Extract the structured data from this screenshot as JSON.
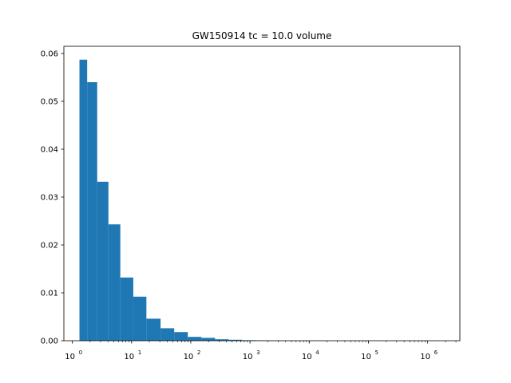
{
  "chart_data": {
    "type": "bar",
    "title": "GW150914 tc = 10.0 volume",
    "xlabel": "",
    "ylabel": "",
    "xscale": "log",
    "xlim": [
      0.72,
      3500000
    ],
    "ylim": [
      0,
      0.0615
    ],
    "grid": false,
    "bar_color": "#1f77b4",
    "bins": [
      {
        "x0": 1.32,
        "x1": 1.78,
        "value": 0.0587
      },
      {
        "x0": 1.78,
        "x1": 2.63,
        "value": 0.054
      },
      {
        "x0": 2.63,
        "x1": 4.07,
        "value": 0.0332
      },
      {
        "x0": 4.07,
        "x1": 6.46,
        "value": 0.0243
      },
      {
        "x0": 6.46,
        "x1": 10.7,
        "value": 0.0132
      },
      {
        "x0": 10.7,
        "x1": 17.8,
        "value": 0.0092
      },
      {
        "x0": 17.8,
        "x1": 30.9,
        "value": 0.0046
      },
      {
        "x0": 30.9,
        "x1": 52.5,
        "value": 0.0026
      },
      {
        "x0": 52.5,
        "x1": 89.1,
        "value": 0.0018
      },
      {
        "x0": 89.1,
        "x1": 151,
        "value": 0.0008
      },
      {
        "x0": 151,
        "x1": 257,
        "value": 0.0006
      },
      {
        "x0": 257,
        "x1": 437,
        "value": 0.0003
      },
      {
        "x0": 437,
        "x1": 741,
        "value": 0.0002
      },
      {
        "x0": 741,
        "x1": 1259,
        "value": 0.0001
      },
      {
        "x0": 1259,
        "x1": 2138,
        "value": 6e-05
      },
      {
        "x0": 2138,
        "x1": 3631,
        "value": 4e-05
      },
      {
        "x0": 3631,
        "x1": 6166,
        "value": 3e-05
      },
      {
        "x0": 6166,
        "x1": 10471,
        "value": 2e-05
      },
      {
        "x0": 10471,
        "x1": 17783,
        "value": 1.5e-05
      },
      {
        "x0": 17783,
        "x1": 30200,
        "value": 1e-05
      },
      {
        "x0": 30200,
        "x1": 51286,
        "value": 8e-06
      },
      {
        "x0": 51286,
        "x1": 87096,
        "value": 6e-06
      },
      {
        "x0": 87096,
        "x1": 147911,
        "value": 5e-06
      },
      {
        "x0": 147911,
        "x1": 251189,
        "value": 4e-06
      },
      {
        "x0": 251189,
        "x1": 426580,
        "value": 3e-06
      },
      {
        "x0": 426580,
        "x1": 724436,
        "value": 2e-06
      },
      {
        "x0": 724436,
        "x1": 1230269,
        "value": 1.5e-06
      },
      {
        "x0": 1230269,
        "x1": 2089296,
        "value": 1e-06
      }
    ],
    "x_ticks": [
      {
        "value": 1,
        "base": "10",
        "exp": "0"
      },
      {
        "value": 10,
        "base": "10",
        "exp": "1"
      },
      {
        "value": 100,
        "base": "10",
        "exp": "2"
      },
      {
        "value": 1000,
        "base": "10",
        "exp": "3"
      },
      {
        "value": 10000,
        "base": "10",
        "exp": "4"
      },
      {
        "value": 100000,
        "base": "10",
        "exp": "5"
      },
      {
        "value": 1000000,
        "base": "10",
        "exp": "6"
      }
    ],
    "y_ticks": [
      {
        "value": 0,
        "label": "0.00"
      },
      {
        "value": 0.01,
        "label": "0.01"
      },
      {
        "value": 0.02,
        "label": "0.02"
      },
      {
        "value": 0.03,
        "label": "0.03"
      },
      {
        "value": 0.04,
        "label": "0.04"
      },
      {
        "value": 0.05,
        "label": "0.05"
      },
      {
        "value": 0.06,
        "label": "0.06"
      }
    ]
  }
}
